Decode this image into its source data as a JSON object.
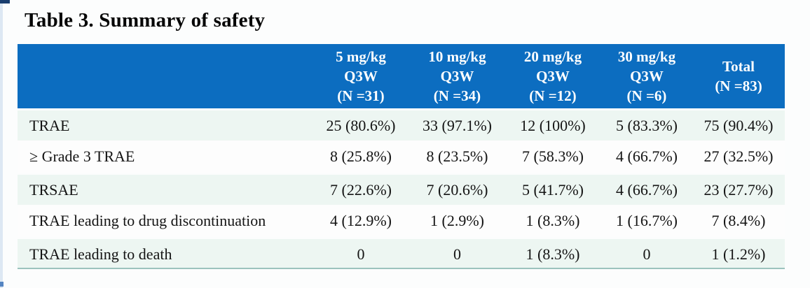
{
  "page": {
    "title": "Table 3. Summary of safety"
  },
  "colors": {
    "header_bg": "#0c6dc0",
    "row_band": "#edf6f2",
    "row_plain": "#fdfdfd",
    "bottom_rule": "#9cc3bd",
    "header_text": "#ffffff",
    "body_text": "#141414"
  },
  "table": {
    "header": {
      "row_label_header": "",
      "columns": [
        "5 mg/kg\nQ3W\n(N =31)",
        "10 mg/kg\nQ3W\n(N =34)",
        "20 mg/kg\nQ3W\n(N =12)",
        "30 mg/kg\nQ3W\n(N =6)",
        "Total\n(N =83)"
      ]
    },
    "rows": [
      {
        "label": "TRAE",
        "values": [
          "25 (80.6%)",
          "33 (97.1%)",
          "12 (100%)",
          "5 (83.3%)",
          "75 (90.4%)"
        ]
      },
      {
        "label": "≥ Grade 3 TRAE",
        "values": [
          "8 (25.8%)",
          "8 (23.5%)",
          "7 (58.3%)",
          "4 (66.7%)",
          "27 (32.5%)"
        ]
      },
      {
        "label": "TRSAE",
        "values": [
          "7 (22.6%)",
          "7 (20.6%)",
          "5 (41.7%)",
          "4 (66.7%)",
          "23 (27.7%)"
        ]
      },
      {
        "label": "TRAE leading to drug discontinuation",
        "values": [
          "4 (12.9%)",
          "1 (2.9%)",
          "1 (8.3%)",
          "1 (16.7%)",
          "7 (8.4%)"
        ]
      },
      {
        "label": "TRAE leading to death",
        "values": [
          "0",
          "0",
          "1 (8.3%)",
          "0",
          "1 (1.2%)"
        ]
      }
    ]
  }
}
